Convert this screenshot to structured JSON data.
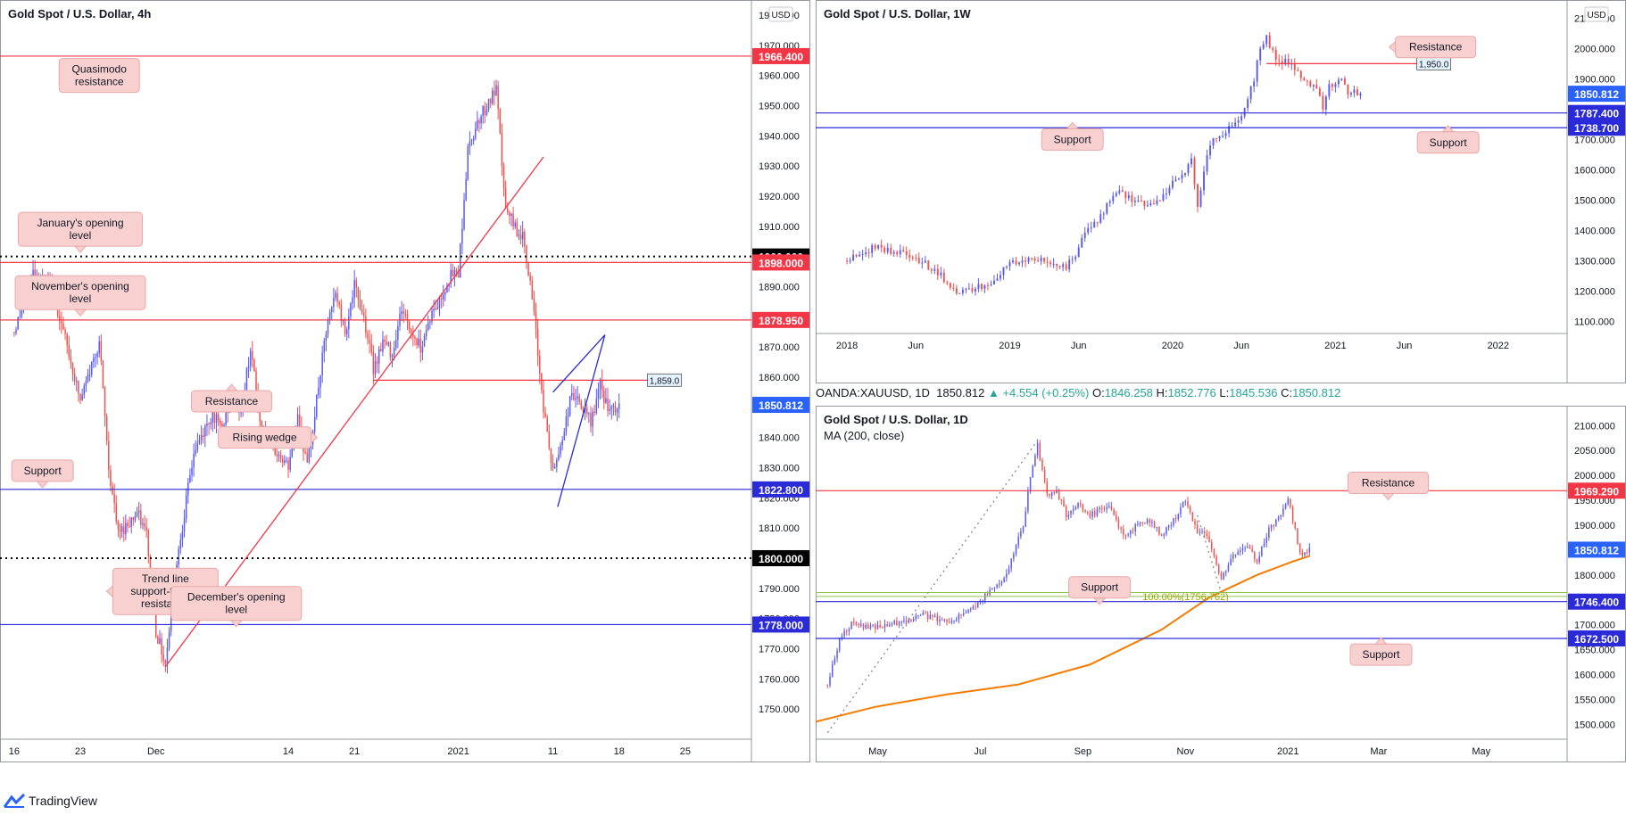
{
  "brand": {
    "name": "TradingView"
  },
  "colors": {
    "bull": "#5b5bf0",
    "bear": "#ef5350",
    "res": "#f23645",
    "sup": "#2a2ad8",
    "ma": "#f57c00",
    "fib": "#8bc34a",
    "callout_bg": "#f8d0d0",
    "callout_border": "#e8a8a8"
  },
  "ticker": {
    "symbol": "OANDA:XAUUSD, 1D",
    "last": "1850.812",
    "change": "+4.554 (+0.25%)",
    "o_label": "O:",
    "o": "1846.258",
    "h_label": "H:",
    "h": "1852.776",
    "l_label": "L:",
    "l": "1845.536",
    "c_label": "C:",
    "c": "1850.812"
  },
  "chart_data": [
    {
      "id": "h4",
      "type": "candlestick",
      "title": "Gold Spot / U.S. Dollar, 4h",
      "currency": "USD",
      "ylim": [
        1740,
        1985
      ],
      "y_ticks": [
        "1750.000",
        "1760.000",
        "1770.000",
        "1780.000",
        "1790.000",
        "1800.000",
        "1810.000",
        "1820.000",
        "1830.000",
        "1840.000",
        "1850.000",
        "1860.000",
        "1870.000",
        "1880.000",
        "1890.000",
        "1900.000",
        "1910.000",
        "1920.000",
        "1930.000",
        "1940.000",
        "1950.000",
        "1960.000",
        "1970.000",
        "1980.000"
      ],
      "y_tick_values": [
        1750,
        1760,
        1770,
        1780,
        1790,
        1800,
        1810,
        1820,
        1830,
        1840,
        1850,
        1860,
        1870,
        1880,
        1890,
        1900,
        1910,
        1920,
        1930,
        1940,
        1950,
        1960,
        1970,
        1980
      ],
      "x_ticks": [
        "16",
        "23",
        "Dec",
        "14",
        "21",
        "2021",
        "11",
        "18",
        "25"
      ],
      "x_tick_values": [
        0,
        7,
        15,
        29,
        36,
        47,
        57,
        64,
        71
      ],
      "xlim": [
        -1.5,
        78
      ],
      "anchors": [
        [
          0,
          1875
        ],
        [
          2,
          1895
        ],
        [
          4,
          1890
        ],
        [
          6,
          1865
        ],
        [
          7,
          1852
        ],
        [
          9,
          1872
        ],
        [
          10,
          1830
        ],
        [
          11,
          1808
        ],
        [
          13,
          1815
        ],
        [
          14,
          1808
        ],
        [
          15,
          1776
        ],
        [
          16,
          1765
        ],
        [
          17,
          1795
        ],
        [
          18,
          1815
        ],
        [
          19,
          1835
        ],
        [
          21,
          1848
        ],
        [
          22,
          1842
        ],
        [
          23,
          1855
        ],
        [
          24,
          1848
        ],
        [
          25,
          1870
        ],
        [
          26,
          1845
        ],
        [
          27,
          1838
        ],
        [
          29,
          1830
        ],
        [
          30,
          1848
        ],
        [
          31,
          1830
        ],
        [
          33,
          1875
        ],
        [
          34,
          1888
        ],
        [
          35,
          1875
        ],
        [
          36,
          1890
        ],
        [
          37,
          1880
        ],
        [
          38,
          1863
        ],
        [
          39,
          1872
        ],
        [
          40,
          1868
        ],
        [
          41,
          1883
        ],
        [
          42,
          1875
        ],
        [
          43,
          1870
        ],
        [
          44,
          1880
        ],
        [
          45,
          1885
        ],
        [
          46,
          1893
        ],
        [
          47,
          1895
        ],
        [
          48,
          1935
        ],
        [
          49,
          1945
        ],
        [
          50,
          1950
        ],
        [
          51,
          1955
        ],
        [
          52,
          1915
        ],
        [
          53,
          1910
        ],
        [
          54,
          1905
        ],
        [
          55,
          1880
        ],
        [
          56,
          1850
        ],
        [
          57,
          1828
        ],
        [
          58,
          1840
        ],
        [
          59,
          1855
        ],
        [
          60,
          1850
        ],
        [
          61,
          1845
        ],
        [
          62,
          1857
        ],
        [
          63,
          1848
        ],
        [
          64,
          1850
        ]
      ],
      "hlines": [
        {
          "value": 1966.4,
          "label": "1966.400",
          "color": "res",
          "style": "solid"
        },
        {
          "value": 1900.0,
          "label": "1900.000",
          "color": "black",
          "style": "dotted"
        },
        {
          "value": 1898.0,
          "label": "1898.000",
          "color": "res",
          "style": "solid"
        },
        {
          "value": 1878.95,
          "label": "1878.950",
          "color": "res",
          "style": "solid"
        },
        {
          "value": 1822.8,
          "label": "1822.800",
          "color": "sup",
          "style": "solid"
        },
        {
          "value": 1800.0,
          "label": "1800.000",
          "color": "black",
          "style": "dotted"
        },
        {
          "value": 1778.0,
          "label": "1778.000",
          "color": "sup",
          "style": "solid"
        }
      ],
      "segment_lines": [
        {
          "x1": 38,
          "x2": 67,
          "value": 1859.0,
          "label": "1,859.0",
          "color": "res"
        }
      ],
      "trendlines": [
        {
          "from": [
            16,
            1764
          ],
          "to": [
            56,
            1933
          ],
          "color": "res"
        },
        {
          "from": [
            57.5,
            1817
          ],
          "to": [
            62.5,
            1874
          ],
          "color": "sup"
        },
        {
          "from": [
            57,
            1855
          ],
          "to": [
            62.5,
            1874
          ],
          "color": "sup"
        }
      ],
      "last_price": {
        "value": 1850.812,
        "label": "1850.812"
      },
      "annotations": [
        {
          "text": "Quasimodo resistance",
          "x": 9,
          "y": 1960,
          "pointer": "none"
        },
        {
          "text": "January's opening level",
          "x": 7,
          "y": 1909,
          "pointer": "down"
        },
        {
          "text": "November's opening level",
          "x": 7,
          "y": 1888,
          "pointer": "down"
        },
        {
          "text": "Resistance",
          "x": 23,
          "y": 1852,
          "pointer": "up"
        },
        {
          "text": "Rising wedge",
          "x": 26.5,
          "y": 1840,
          "pointer": "right"
        },
        {
          "text": "Support",
          "x": 3,
          "y": 1829,
          "pointer": "down"
        },
        {
          "text": "Trend line support-turned resistance",
          "x": 16,
          "y": 1789,
          "pointer": "left"
        },
        {
          "text": "December's opening level",
          "x": 23.5,
          "y": 1785,
          "pointer": "down"
        }
      ]
    },
    {
      "id": "w1",
      "type": "candlestick",
      "title": "Gold Spot / U.S. Dollar, 1W",
      "currency": "USD",
      "ylim": [
        1060,
        2160
      ],
      "y_ticks": [
        "1100.000",
        "1200.000",
        "1300.000",
        "1400.000",
        "1500.000",
        "1600.000",
        "1700.000",
        "1800.000",
        "1900.000",
        "2000.000",
        "2100.000"
      ],
      "y_tick_values": [
        1100,
        1200,
        1300,
        1400,
        1500,
        1600,
        1700,
        1800,
        1900,
        2000,
        2100
      ],
      "x_ticks": [
        "2018",
        "Jun",
        "2019",
        "Jun",
        "2020",
        "Jun",
        "2021",
        "Jun",
        "2022"
      ],
      "x_tick_values": [
        0,
        22,
        52,
        74,
        104,
        126,
        156,
        178,
        208
      ],
      "xlim": [
        -10,
        230
      ],
      "anchors": [
        [
          0,
          1300
        ],
        [
          5,
          1330
        ],
        [
          10,
          1345
        ],
        [
          15,
          1330
        ],
        [
          20,
          1320
        ],
        [
          25,
          1290
        ],
        [
          30,
          1250
        ],
        [
          33,
          1200
        ],
        [
          36,
          1195
        ],
        [
          40,
          1210
        ],
        [
          45,
          1225
        ],
        [
          52,
          1285
        ],
        [
          57,
          1305
        ],
        [
          62,
          1300
        ],
        [
          70,
          1280
        ],
        [
          73,
          1320
        ],
        [
          77,
          1410
        ],
        [
          80,
          1420
        ],
        [
          84,
          1505
        ],
        [
          88,
          1525
        ],
        [
          92,
          1490
        ],
        [
          98,
          1480
        ],
        [
          104,
          1560
        ],
        [
          108,
          1590
        ],
        [
          110,
          1640
        ],
        [
          112,
          1480
        ],
        [
          116,
          1690
        ],
        [
          120,
          1720
        ],
        [
          126,
          1780
        ],
        [
          130,
          1900
        ],
        [
          132,
          2000
        ],
        [
          134,
          2040
        ],
        [
          137,
          1960
        ],
        [
          142,
          1950
        ],
        [
          146,
          1900
        ],
        [
          150,
          1870
        ],
        [
          152,
          1800
        ],
        [
          154,
          1880
        ],
        [
          158,
          1900
        ],
        [
          160,
          1860
        ],
        [
          164,
          1850
        ]
      ],
      "hlines": [
        {
          "value": 1787.4,
          "label": "1787.400",
          "color": "sup",
          "style": "solid"
        },
        {
          "value": 1738.7,
          "label": "1738.700",
          "color": "sup",
          "style": "solid"
        }
      ],
      "segment_lines": [
        {
          "x1": 134,
          "x2": 182,
          "value": 1950.0,
          "label": "1,950.0",
          "color": "res"
        }
      ],
      "trendlines": [],
      "last_price": {
        "value": 1850.812,
        "label": "1850.812"
      },
      "annotations": [
        {
          "text": "Resistance",
          "x": 188,
          "y": 2005,
          "pointer": "left"
        },
        {
          "text": "Support",
          "x": 72,
          "y": 1700,
          "pointer": "up"
        },
        {
          "text": "Support",
          "x": 192,
          "y": 1690,
          "pointer": "up"
        }
      ]
    },
    {
      "id": "d1",
      "type": "candlestick",
      "title": "Gold Spot / U.S. Dollar, 1D",
      "subtitle": "MA (200, close)",
      "currency": "",
      "ylim": [
        1470,
        2140
      ],
      "y_ticks": [
        "1500.000",
        "1550.000",
        "1600.000",
        "1650.000",
        "1700.000",
        "1750.000",
        "1800.000",
        "1850.000",
        "1900.000",
        "1950.000",
        "2000.000",
        "2050.000",
        "2100.000"
      ],
      "y_tick_values": [
        1500,
        1550,
        1600,
        1650,
        1700,
        1750,
        1800,
        1850,
        1900,
        1950,
        2000,
        2050,
        2100
      ],
      "x_ticks": [
        "May",
        "Jul",
        "Sep",
        "Nov",
        "2021",
        "Mar",
        "May"
      ],
      "x_tick_values": [
        21,
        64,
        107,
        150,
        193,
        231,
        274
      ],
      "xlim": [
        -5,
        310
      ],
      "anchors": [
        [
          0,
          1580
        ],
        [
          5,
          1670
        ],
        [
          10,
          1700
        ],
        [
          20,
          1695
        ],
        [
          30,
          1705
        ],
        [
          40,
          1720
        ],
        [
          50,
          1705
        ],
        [
          60,
          1730
        ],
        [
          70,
          1775
        ],
        [
          75,
          1800
        ],
        [
          82,
          1900
        ],
        [
          85,
          2000
        ],
        [
          88,
          2060
        ],
        [
          92,
          1960
        ],
        [
          96,
          1970
        ],
        [
          100,
          1920
        ],
        [
          105,
          1945
        ],
        [
          110,
          1920
        ],
        [
          118,
          1940
        ],
        [
          124,
          1880
        ],
        [
          130,
          1900
        ],
        [
          135,
          1910
        ],
        [
          140,
          1880
        ],
        [
          145,
          1910
        ],
        [
          150,
          1950
        ],
        [
          155,
          1890
        ],
        [
          160,
          1870
        ],
        [
          165,
          1790
        ],
        [
          170,
          1840
        ],
        [
          175,
          1860
        ],
        [
          180,
          1830
        ],
        [
          185,
          1890
        ],
        [
          190,
          1920
        ],
        [
          193,
          1955
        ],
        [
          196,
          1890
        ],
        [
          198,
          1840
        ],
        [
          200,
          1845
        ],
        [
          202,
          1850
        ]
      ],
      "ma200": [
        [
          -5,
          1505
        ],
        [
          20,
          1535
        ],
        [
          50,
          1560
        ],
        [
          80,
          1580
        ],
        [
          110,
          1620
        ],
        [
          140,
          1690
        ],
        [
          160,
          1755
        ],
        [
          180,
          1800
        ],
        [
          195,
          1827
        ],
        [
          202,
          1838
        ]
      ],
      "hlines": [
        {
          "value": 1969.29,
          "label": "1969.290",
          "color": "res",
          "style": "solid"
        },
        {
          "value": 1746.4,
          "label": "1746.400",
          "color": "sup",
          "style": "solid"
        },
        {
          "value": 1672.5,
          "label": "1672.500",
          "color": "sup",
          "style": "solid"
        }
      ],
      "fib_lines": [
        {
          "value": 1764.8,
          "color": "fib"
        },
        {
          "value": 1756.762,
          "color": "fib",
          "label": "100.00%(1756.762)",
          "label_x": 132
        }
      ],
      "trendlines": [
        {
          "from": [
            0,
            1483
          ],
          "to": [
            88,
            2070
          ],
          "color": "#888",
          "dotted": true
        },
        {
          "from": [
            155,
            1920
          ],
          "to": [
            165,
            1765
          ],
          "color": "#888",
          "dotted": true
        }
      ],
      "last_price": {
        "value": 1850.812,
        "label": "1850.812"
      },
      "annotations": [
        {
          "text": "Resistance",
          "x": 235,
          "y": 1985,
          "pointer": "down"
        },
        {
          "text": "Support",
          "x": 114,
          "y": 1775,
          "pointer": "down"
        },
        {
          "text": "Support",
          "x": 232,
          "y": 1640,
          "pointer": "up"
        }
      ]
    }
  ]
}
